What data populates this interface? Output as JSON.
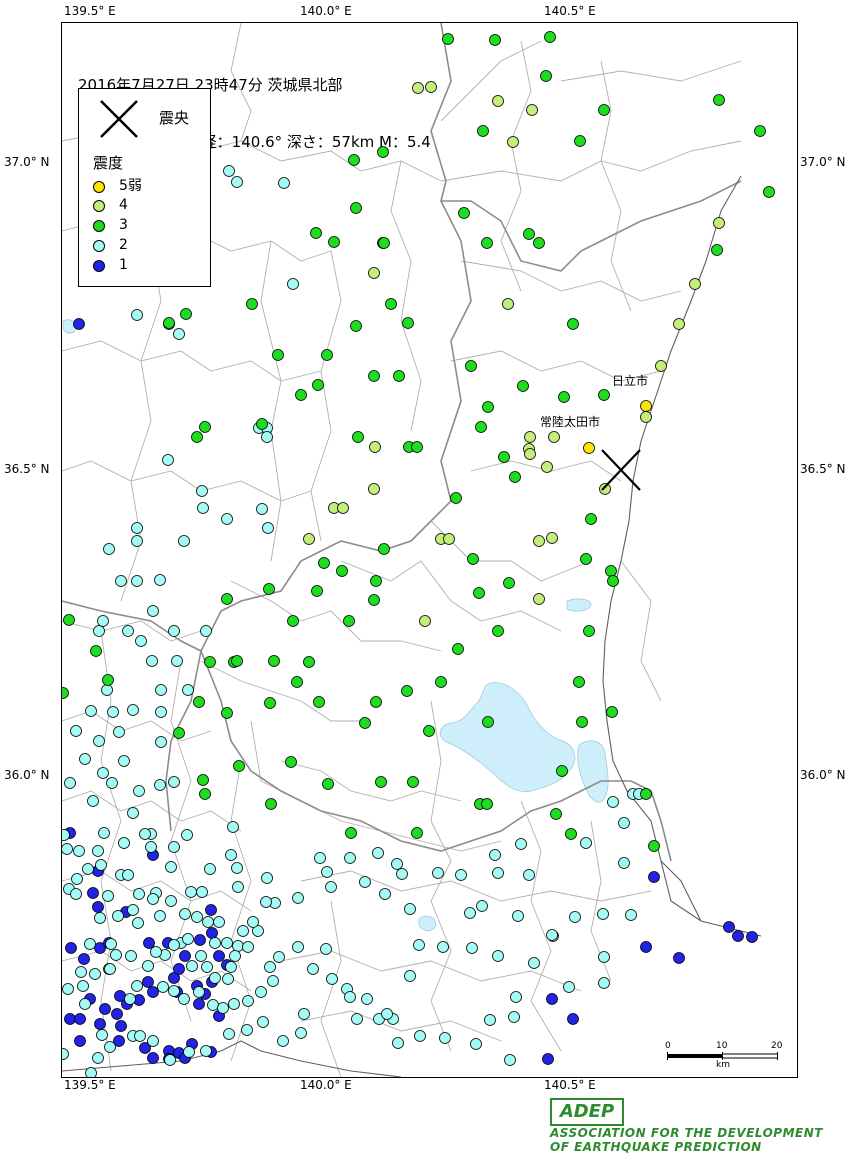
{
  "map": {
    "title_line1": "2016年7月27日 23時47分 茨城県北部",
    "title_line2": "北緯：36.5° 東経：140.6° 深さ：57km M：5.4",
    "lon_labels": [
      "139.5° E",
      "140.0° E",
      "140.5° E"
    ],
    "lat_labels": [
      "37.0° N",
      "36.5° N",
      "36.0° N"
    ],
    "epicenter_label": "震央",
    "cities": [
      "日立市",
      "常陸太田市"
    ],
    "scale": {
      "ticks": [
        "0",
        "10",
        "20"
      ],
      "unit": "km"
    }
  },
  "legend": {
    "heading": "震度",
    "items": [
      {
        "label": "5弱",
        "color": "#ffe600"
      },
      {
        "label": "4",
        "color": "#c4ee7a"
      },
      {
        "label": "3",
        "color": "#1edd1e"
      },
      {
        "label": "2",
        "color": "#a3fbf5"
      },
      {
        "label": "1",
        "color": "#2323e6"
      }
    ]
  },
  "colors": {
    "water": "#cfeefc",
    "boundary": "#b0b0b0",
    "prefecture": "#8c8c8c",
    "coast": "#606060"
  },
  "stations": {
    "int5": [
      [
        588,
        447
      ],
      [
        645,
        405
      ]
    ],
    "int4": [
      [
        417,
        87
      ],
      [
        430,
        86
      ],
      [
        497,
        100
      ],
      [
        531,
        109
      ],
      [
        512,
        141
      ],
      [
        718,
        222
      ],
      [
        694,
        283
      ],
      [
        678,
        323
      ],
      [
        660,
        365
      ],
      [
        645,
        416
      ],
      [
        553,
        436
      ],
      [
        529,
        436
      ],
      [
        546,
        466
      ],
      [
        604,
        488
      ],
      [
        528,
        448
      ],
      [
        538,
        540
      ],
      [
        551,
        537
      ],
      [
        374,
        446
      ],
      [
        373,
        272
      ],
      [
        333,
        507
      ],
      [
        342,
        507
      ],
      [
        440,
        538
      ],
      [
        448,
        538
      ],
      [
        308,
        538
      ],
      [
        538,
        598
      ],
      [
        424,
        620
      ],
      [
        529,
        453
      ],
      [
        507,
        303
      ],
      [
        373,
        488
      ]
    ],
    "int3": [
      [
        447,
        38
      ],
      [
        494,
        39
      ],
      [
        549,
        36
      ],
      [
        545,
        75
      ],
      [
        603,
        109
      ],
      [
        579,
        140
      ],
      [
        718,
        99
      ],
      [
        759,
        130
      ],
      [
        768,
        191
      ],
      [
        716,
        249
      ],
      [
        482,
        130
      ],
      [
        528,
        233
      ],
      [
        538,
        242
      ],
      [
        463,
        212
      ],
      [
        486,
        242
      ],
      [
        572,
        323
      ],
      [
        603,
        394
      ],
      [
        563,
        396
      ],
      [
        522,
        385
      ],
      [
        470,
        365
      ],
      [
        487,
        406
      ],
      [
        480,
        426
      ],
      [
        503,
        456
      ],
      [
        514,
        476
      ],
      [
        455,
        497
      ],
      [
        472,
        558
      ],
      [
        478,
        592
      ],
      [
        497,
        630
      ],
      [
        508,
        582
      ],
      [
        590,
        518
      ],
      [
        585,
        558
      ],
      [
        610,
        570
      ],
      [
        612,
        580
      ],
      [
        588,
        630
      ],
      [
        578,
        681
      ],
      [
        581,
        721
      ],
      [
        561,
        770
      ],
      [
        611,
        711
      ],
      [
        645,
        793
      ],
      [
        653,
        845
      ],
      [
        555,
        813
      ],
      [
        570,
        833
      ],
      [
        353,
        159
      ],
      [
        382,
        151
      ],
      [
        355,
        207
      ],
      [
        315,
        232
      ],
      [
        333,
        241
      ],
      [
        383,
        242
      ],
      [
        390,
        303
      ],
      [
        407,
        322
      ],
      [
        355,
        325
      ],
      [
        326,
        354
      ],
      [
        317,
        384
      ],
      [
        300,
        394
      ],
      [
        277,
        354
      ],
      [
        373,
        375
      ],
      [
        398,
        375
      ],
      [
        357,
        436
      ],
      [
        408,
        446
      ],
      [
        416,
        446
      ],
      [
        261,
        423
      ],
      [
        204,
        426
      ],
      [
        196,
        436
      ],
      [
        251,
        303
      ],
      [
        185,
        313
      ],
      [
        383,
        548
      ],
      [
        323,
        562
      ],
      [
        341,
        570
      ],
      [
        375,
        580
      ],
      [
        373,
        599
      ],
      [
        348,
        620
      ],
      [
        292,
        620
      ],
      [
        316,
        590
      ],
      [
        226,
        598
      ],
      [
        268,
        588
      ],
      [
        209,
        661
      ],
      [
        233,
        661
      ],
      [
        273,
        660
      ],
      [
        308,
        661
      ],
      [
        296,
        681
      ],
      [
        440,
        681
      ],
      [
        406,
        690
      ],
      [
        375,
        701
      ],
      [
        364,
        722
      ],
      [
        318,
        701
      ],
      [
        269,
        702
      ],
      [
        226,
        712
      ],
      [
        238,
        765
      ],
      [
        290,
        761
      ],
      [
        270,
        803
      ],
      [
        204,
        793
      ],
      [
        202,
        779
      ],
      [
        178,
        732
      ],
      [
        198,
        701
      ],
      [
        487,
        721
      ],
      [
        428,
        730
      ],
      [
        380,
        781
      ],
      [
        412,
        781
      ],
      [
        327,
        783
      ],
      [
        479,
        803
      ],
      [
        486,
        803
      ],
      [
        416,
        832
      ],
      [
        350,
        832
      ],
      [
        68,
        619
      ],
      [
        95,
        650
      ],
      [
        107,
        679
      ],
      [
        62,
        692
      ],
      [
        457,
        648
      ],
      [
        236,
        660
      ],
      [
        168,
        322
      ]
    ],
    "int2": [
      [
        228,
        170
      ],
      [
        236,
        181
      ],
      [
        283,
        182
      ],
      [
        292,
        283
      ],
      [
        136,
        314
      ],
      [
        168,
        323
      ],
      [
        178,
        333
      ],
      [
        382,
        242
      ],
      [
        258,
        427
      ],
      [
        266,
        427
      ],
      [
        266,
        436
      ],
      [
        167,
        459
      ],
      [
        201,
        490
      ],
      [
        202,
        507
      ],
      [
        226,
        518
      ],
      [
        261,
        508
      ],
      [
        267,
        527
      ],
      [
        108,
        548
      ],
      [
        136,
        527
      ],
      [
        136,
        540
      ],
      [
        183,
        540
      ],
      [
        136,
        580
      ],
      [
        159,
        579
      ],
      [
        120,
        580
      ],
      [
        152,
        610
      ],
      [
        173,
        630
      ],
      [
        205,
        630
      ],
      [
        98,
        630
      ],
      [
        102,
        620
      ],
      [
        127,
        630
      ],
      [
        140,
        640
      ],
      [
        151,
        660
      ],
      [
        176,
        660
      ],
      [
        160,
        689
      ],
      [
        187,
        689
      ],
      [
        106,
        689
      ],
      [
        132,
        709
      ],
      [
        90,
        710
      ],
      [
        118,
        731
      ],
      [
        75,
        730
      ],
      [
        98,
        740
      ],
      [
        84,
        758
      ],
      [
        102,
        772
      ],
      [
        123,
        760
      ],
      [
        160,
        741
      ],
      [
        160,
        711
      ],
      [
        112,
        711
      ],
      [
        69,
        782
      ],
      [
        111,
        782
      ],
      [
        138,
        790
      ],
      [
        159,
        784
      ],
      [
        173,
        781
      ],
      [
        92,
        800
      ],
      [
        132,
        812
      ],
      [
        150,
        833
      ],
      [
        144,
        833
      ],
      [
        150,
        846
      ],
      [
        123,
        842
      ],
      [
        100,
        864
      ],
      [
        87,
        868
      ],
      [
        76,
        878
      ],
      [
        120,
        874
      ],
      [
        127,
        874
      ],
      [
        170,
        866
      ],
      [
        138,
        893
      ],
      [
        155,
        892
      ],
      [
        132,
        909
      ],
      [
        152,
        898
      ],
      [
        170,
        900
      ],
      [
        190,
        891
      ],
      [
        201,
        891
      ],
      [
        184,
        913
      ],
      [
        196,
        916
      ],
      [
        207,
        921
      ],
      [
        218,
        921
      ],
      [
        226,
        942
      ],
      [
        214,
        942
      ],
      [
        237,
        945
      ],
      [
        242,
        930
      ],
      [
        257,
        930
      ],
      [
        234,
        955
      ],
      [
        230,
        966
      ],
      [
        206,
        966
      ],
      [
        214,
        977
      ],
      [
        191,
        965
      ],
      [
        200,
        955
      ],
      [
        164,
        954
      ],
      [
        147,
        965
      ],
      [
        130,
        955
      ],
      [
        110,
        943
      ],
      [
        115,
        954
      ],
      [
        108,
        968
      ],
      [
        80,
        971
      ],
      [
        82,
        985
      ],
      [
        129,
        998
      ],
      [
        136,
        985
      ],
      [
        173,
        990
      ],
      [
        183,
        998
      ],
      [
        198,
        991
      ],
      [
        212,
        1004
      ],
      [
        222,
        1007
      ],
      [
        233,
        1003
      ],
      [
        247,
        1000
      ],
      [
        260,
        991
      ],
      [
        272,
        980
      ],
      [
        269,
        966
      ],
      [
        278,
        956
      ],
      [
        297,
        946
      ],
      [
        325,
        948
      ],
      [
        312,
        968
      ],
      [
        331,
        978
      ],
      [
        346,
        988
      ],
      [
        366,
        998
      ],
      [
        378,
        1018
      ],
      [
        356,
        1018
      ],
      [
        392,
        1018
      ],
      [
        409,
        975
      ],
      [
        418,
        944
      ],
      [
        442,
        946
      ],
      [
        471,
        947
      ],
      [
        497,
        955
      ],
      [
        533,
        962
      ],
      [
        552,
        935
      ],
      [
        574,
        916
      ],
      [
        602,
        913
      ],
      [
        630,
        914
      ],
      [
        623,
        862
      ],
      [
        585,
        842
      ],
      [
        612,
        801
      ],
      [
        632,
        793
      ],
      [
        638,
        793
      ],
      [
        623,
        822
      ],
      [
        603,
        956
      ],
      [
        603,
        982
      ],
      [
        568,
        986
      ],
      [
        515,
        996
      ],
      [
        513,
        1016
      ],
      [
        489,
        1019
      ],
      [
        509,
        1059
      ],
      [
        475,
        1043
      ],
      [
        444,
        1037
      ],
      [
        419,
        1035
      ],
      [
        397,
        1042
      ],
      [
        386,
        1013
      ],
      [
        349,
        996
      ],
      [
        303,
        1013
      ],
      [
        300,
        1032
      ],
      [
        282,
        1040
      ],
      [
        262,
        1021
      ],
      [
        246,
        1029
      ],
      [
        228,
        1033
      ],
      [
        205,
        1050
      ],
      [
        188,
        1051
      ],
      [
        169,
        1059
      ],
      [
        152,
        1040
      ],
      [
        132,
        1035
      ],
      [
        97,
        1057
      ],
      [
        90,
        1072
      ],
      [
        109,
        1046
      ],
      [
        62,
        1053
      ],
      [
        232,
        826
      ],
      [
        230,
        854
      ],
      [
        186,
        834
      ],
      [
        173,
        846
      ],
      [
        209,
        868
      ],
      [
        237,
        886
      ],
      [
        236,
        867
      ],
      [
        266,
        877
      ],
      [
        274,
        902
      ],
      [
        319,
        857
      ],
      [
        326,
        871
      ],
      [
        349,
        857
      ],
      [
        377,
        852
      ],
      [
        396,
        863
      ],
      [
        401,
        873
      ],
      [
        437,
        872
      ],
      [
        460,
        874
      ],
      [
        494,
        854
      ],
      [
        520,
        843
      ],
      [
        528,
        874
      ],
      [
        497,
        872
      ],
      [
        481,
        905
      ],
      [
        469,
        912
      ],
      [
        517,
        915
      ],
      [
        551,
        934
      ],
      [
        409,
        908
      ],
      [
        384,
        893
      ],
      [
        364,
        881
      ],
      [
        330,
        886
      ],
      [
        297,
        897
      ],
      [
        265,
        901
      ],
      [
        252,
        921
      ],
      [
        247,
        946
      ],
      [
        227,
        978
      ],
      [
        162,
        986
      ],
      [
        139,
        1035
      ],
      [
        101,
        1034
      ],
      [
        84,
        1003
      ],
      [
        67,
        988
      ],
      [
        66,
        848
      ],
      [
        97,
        850
      ],
      [
        103,
        832
      ],
      [
        78,
        850
      ],
      [
        63,
        834
      ],
      [
        68,
        888
      ],
      [
        75,
        893
      ],
      [
        107,
        895
      ],
      [
        159,
        915
      ],
      [
        180,
        942
      ],
      [
        187,
        938
      ],
      [
        155,
        951
      ],
      [
        173,
        944
      ],
      [
        94,
        973
      ],
      [
        89,
        943
      ],
      [
        109,
        968
      ],
      [
        99,
        917
      ],
      [
        117,
        915
      ],
      [
        137,
        922
      ]
    ],
    "int1": [
      [
        78,
        323
      ],
      [
        69,
        832
      ],
      [
        92,
        892
      ],
      [
        97,
        906
      ],
      [
        70,
        947
      ],
      [
        83,
        958
      ],
      [
        99,
        947
      ],
      [
        108,
        942
      ],
      [
        125,
        911
      ],
      [
        152,
        854
      ],
      [
        148,
        942
      ],
      [
        167,
        942
      ],
      [
        147,
        981
      ],
      [
        152,
        991
      ],
      [
        138,
        999
      ],
      [
        176,
        991
      ],
      [
        173,
        977
      ],
      [
        178,
        968
      ],
      [
        184,
        955
      ],
      [
        211,
        932
      ],
      [
        210,
        909
      ],
      [
        199,
        939
      ],
      [
        218,
        955
      ],
      [
        226,
        964
      ],
      [
        196,
        985
      ],
      [
        211,
        981
      ],
      [
        204,
        993
      ],
      [
        198,
        1003
      ],
      [
        218,
        1015
      ],
      [
        126,
        1003
      ],
      [
        116,
        1013
      ],
      [
        119,
        995
      ],
      [
        104,
        1008
      ],
      [
        89,
        998
      ],
      [
        69,
        1018
      ],
      [
        79,
        1018
      ],
      [
        99,
        1023
      ],
      [
        120,
        1025
      ],
      [
        118,
        1040
      ],
      [
        79,
        1040
      ],
      [
        144,
        1047
      ],
      [
        152,
        1057
      ],
      [
        168,
        1050
      ],
      [
        178,
        1052
      ],
      [
        191,
        1043
      ],
      [
        184,
        1057
      ],
      [
        210,
        1051
      ],
      [
        168,
        1058
      ],
      [
        551,
        998
      ],
      [
        572,
        1018
      ],
      [
        547,
        1058
      ],
      [
        645,
        946
      ],
      [
        678,
        957
      ],
      [
        653,
        876
      ],
      [
        728,
        926
      ],
      [
        737,
        935
      ],
      [
        751,
        936
      ],
      [
        97,
        870
      ]
    ]
  }
}
